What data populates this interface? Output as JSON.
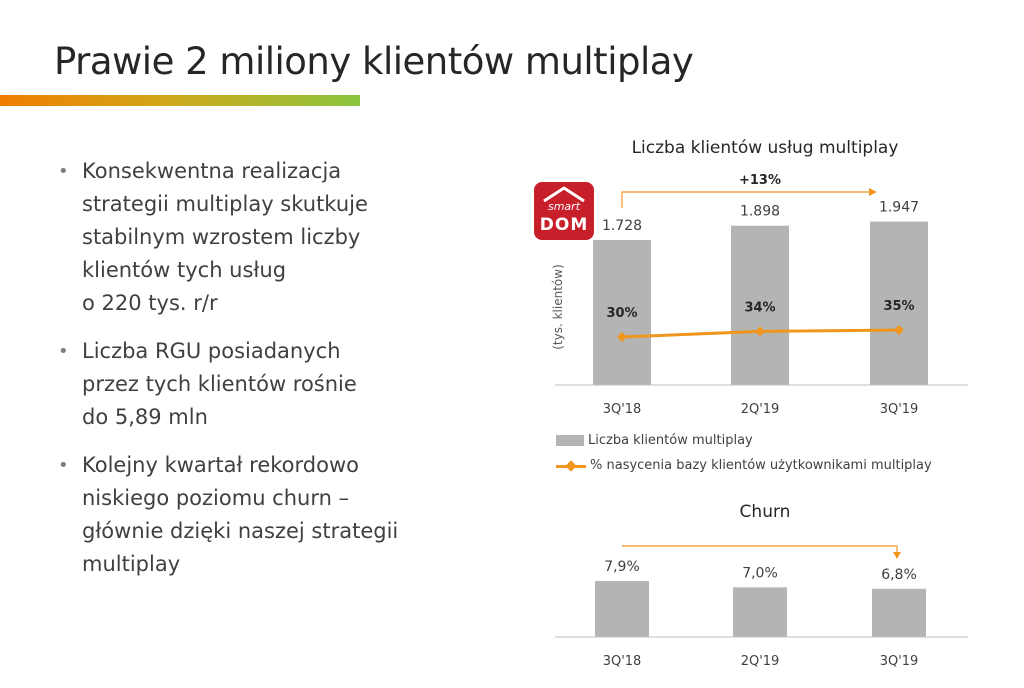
{
  "slide": {
    "title": "Prawie 2 miliony klientów multiplay",
    "accent_colors": [
      "#f07d00",
      "#8cc63f"
    ]
  },
  "bullets": [
    "Konsekwentna realizacja\nstrategii multiplay skutkuje\nstabilnym wzrostem liczby\nklientów tych usług\no 220 tys. r/r",
    "Liczba RGU posiadanych\nprzez tych klientów rośnie\ndo 5,89 mln",
    "Kolejny kwartał rekordowo\nniskiego poziomu churn –\ngłównie dzięki naszej strategii\nmultiplay"
  ],
  "logo": {
    "top": "smart",
    "bottom": "DOM",
    "color": "#c8202b"
  },
  "chart_data": [
    {
      "type": "bar",
      "title": "Liczba klientów usług multiplay",
      "ylabel": "(tys. klientów)",
      "categories": [
        "3Q'18",
        "2Q'19",
        "3Q'19"
      ],
      "series": [
        {
          "name": "Liczba klientów multiplay",
          "type": "bar",
          "values": [
            1728,
            1898,
            1947
          ],
          "labels": [
            "1.728",
            "1.898",
            "1.947"
          ],
          "color": "#b4b4b4"
        },
        {
          "name": "% nasycenia bazy klientów użytkownikami multiplay",
          "type": "line",
          "values": [
            30,
            34,
            35
          ],
          "labels": [
            "30%",
            "34%",
            "35%"
          ],
          "color": "#f0951e"
        }
      ],
      "annotation": "+13%",
      "legend": "bottom"
    },
    {
      "type": "bar",
      "title": "Churn",
      "categories": [
        "3Q'18",
        "2Q'19",
        "3Q'19"
      ],
      "values": [
        7.9,
        7.0,
        6.8
      ],
      "labels": [
        "7,9%",
        "7,0%",
        "6,8%"
      ],
      "color": "#b4b4b4"
    }
  ]
}
